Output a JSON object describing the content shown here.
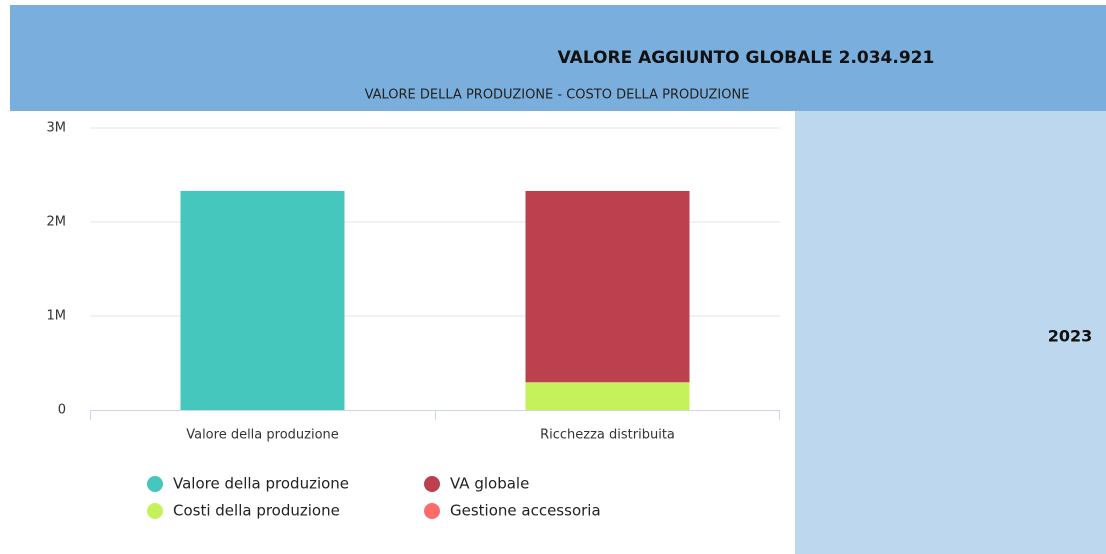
{
  "chart_data": {
    "type": "stacked-bar",
    "title": "VALORE AGGIUNTO GLOBALE 2.034.921",
    "subtitle": "VALORE DELLA PRODUZIONE - COSTO DELLA PRODUZIONE",
    "period": "2023",
    "categories": [
      "Valore della produzione",
      "Ricchezza distribuita"
    ],
    "series": [
      {
        "name": "Valore della produzione",
        "color": "#45c7bd",
        "values": [
          2330000,
          null
        ]
      },
      {
        "name": "VA globale",
        "color": "#bc404e",
        "values": [
          null,
          2034921
        ]
      },
      {
        "name": "Costi della produzione",
        "color": "#c5f25a",
        "values": [
          null,
          295000
        ]
      },
      {
        "name": "Gestione accessoria",
        "color": "#ff6b6b",
        "values": [
          null,
          0
        ]
      }
    ],
    "ylim": [
      0,
      3000000
    ],
    "yticks": [
      0,
      {
        "value": 1000000,
        "label": "1M"
      },
      {
        "value": 2000000,
        "label": "2M"
      },
      {
        "value": 3000000,
        "label": "3M"
      }
    ],
    "grid": true
  }
}
